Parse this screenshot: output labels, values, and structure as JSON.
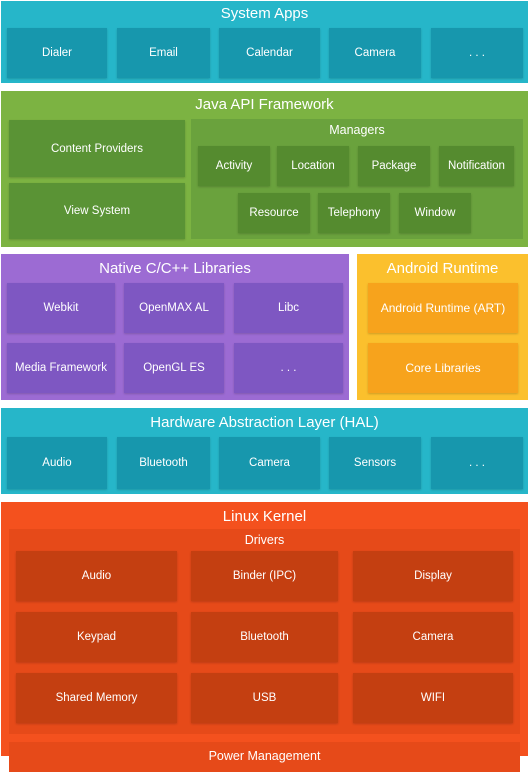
{
  "system_apps": {
    "title": "System Apps",
    "items": [
      "Dialer",
      "Email",
      "Calendar",
      "Camera",
      ". . ."
    ]
  },
  "java_api": {
    "title": "Java API Framework",
    "content_providers": "Content Providers",
    "view_system": "View System",
    "managers": {
      "title": "Managers",
      "row1": [
        "Activity",
        "Location",
        "Package",
        "Notification"
      ],
      "row2": [
        "Resource",
        "Telephony",
        "Window"
      ]
    }
  },
  "native_libs": {
    "title": "Native C/C++ Libraries",
    "row1": [
      "Webkit",
      "OpenMAX AL",
      "Libc"
    ],
    "row2": [
      "Media Framework",
      "OpenGL ES",
      ". . ."
    ]
  },
  "android_runtime": {
    "title": "Android Runtime",
    "items": [
      "Android Runtime (ART)",
      "Core Libraries"
    ]
  },
  "hal": {
    "title": "Hardware Abstraction Layer (HAL)",
    "items": [
      "Audio",
      "Bluetooth",
      "Camera",
      "Sensors",
      ". . ."
    ]
  },
  "linux_kernel": {
    "title": "Linux Kernel",
    "drivers": {
      "title": "Drivers",
      "rows": [
        [
          "Audio",
          "Binder (IPC)",
          "Display"
        ],
        [
          "Keypad",
          "Bluetooth",
          "Camera"
        ],
        [
          "Shared Memory",
          "USB",
          "WIFI"
        ]
      ]
    },
    "power_management": "Power Management"
  }
}
